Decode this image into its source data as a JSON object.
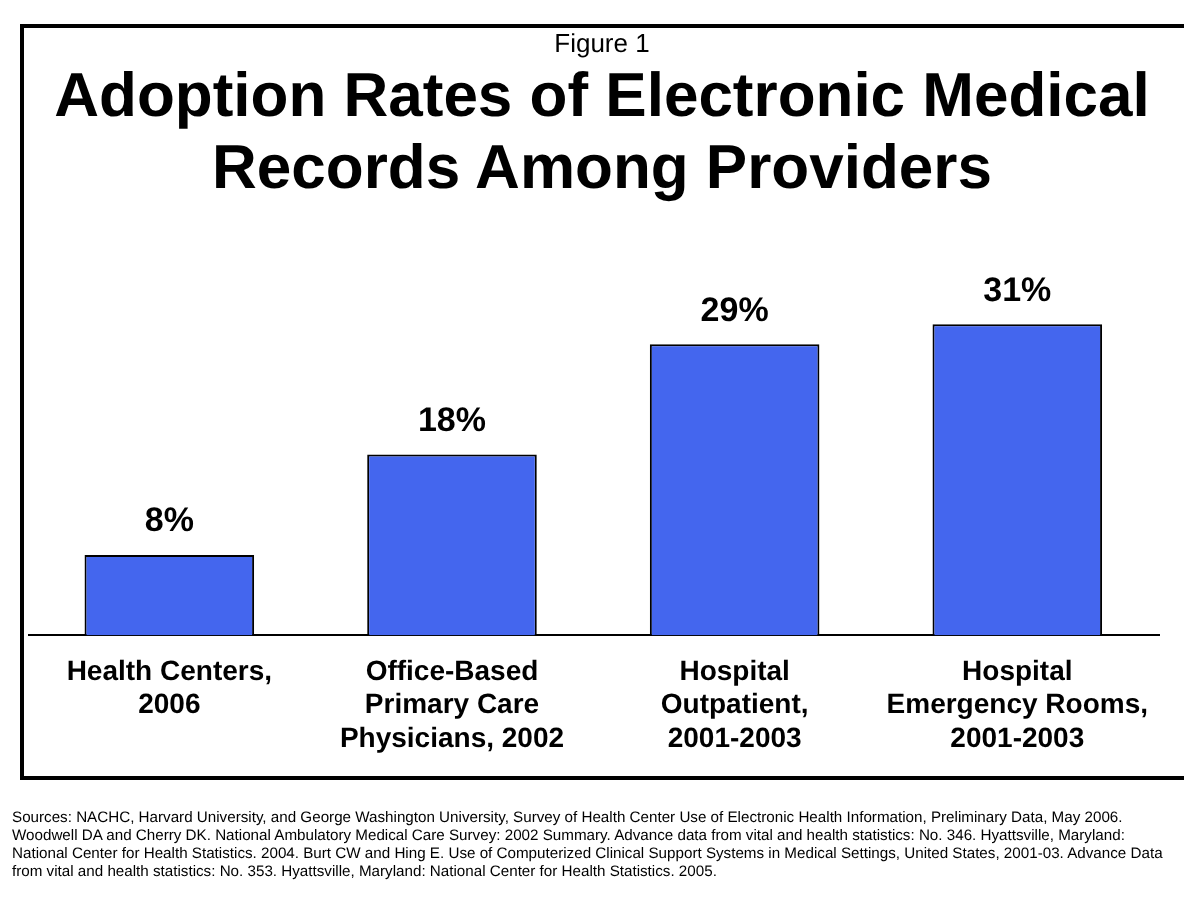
{
  "chart_data": {
    "type": "bar",
    "subtitle": "Figure 1",
    "title": "Adoption Rates of Electronic Medical Records Among Providers",
    "categories": [
      "Health Centers, 2006",
      "Office-Based Primary Care Physicians, 2002",
      "Hospital Outpatient, 2001-2003",
      "Hospital Emergency Rooms, 2001-2003"
    ],
    "values": [
      8,
      18,
      29,
      31
    ],
    "value_labels": [
      "8%",
      "18%",
      "29%",
      "31%"
    ],
    "color": "#4466ee",
    "tick_labels": "x",
    "grid": false,
    "legend": false,
    "annotations": [
      "Sources:  NACHC, Harvard University, and George Washington University, Survey of Health Center Use of Electronic Health Information, Preliminary Data, May 2006.  Woodwell DA and Cherry DK.  National Ambulatory Medical Care Survey:  2002 Summary.  Advance data from vital and health statistics: No. 346.  Hyattsville, Maryland: National Center for Health Statistics. 2004. Burt CW and Hing E.  Use of Computerized Clinical Support Systems in Medical Settings, United States, 2001-03.  Advance Data from vital and health statistics: No. 353.  Hyattsville, Maryland: National Center for Health Statistics. 2005."
    ]
  }
}
